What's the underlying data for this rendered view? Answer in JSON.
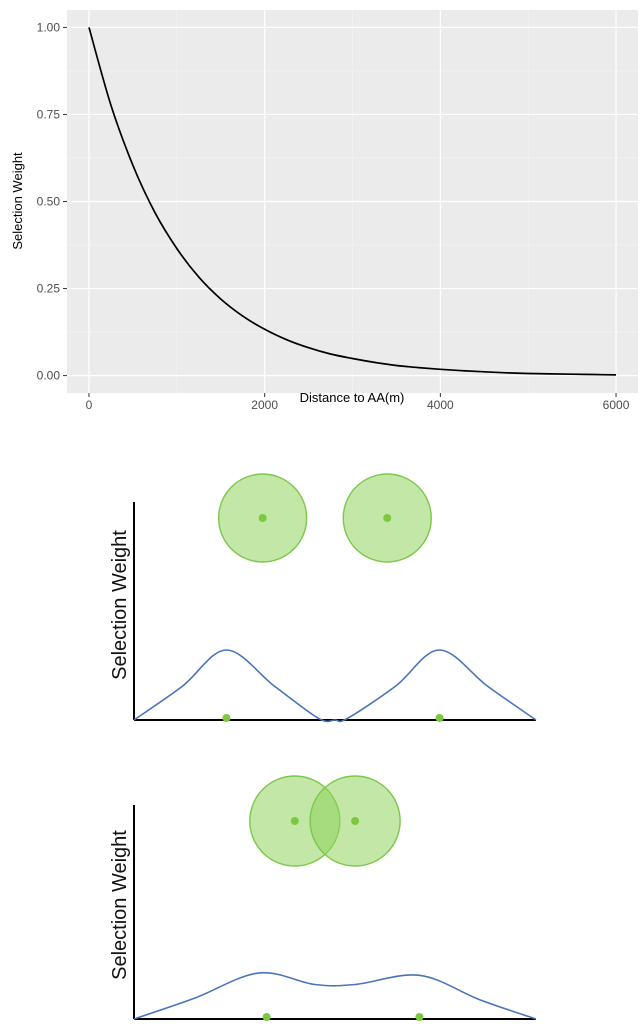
{
  "chart_data": [
    {
      "type": "line",
      "xlabel": "Distance to AA(m)",
      "ylabel": "Selection Weight",
      "xlim": [
        -250,
        6250
      ],
      "ylim": [
        -0.05,
        1.05
      ],
      "x_ticks": [
        0,
        2000,
        4000,
        6000
      ],
      "x_tick_labels": [
        "0",
        "2000",
        "4000",
        "6000"
      ],
      "y_ticks": [
        0,
        0.25,
        0.5,
        0.75,
        1.0
      ],
      "y_tick_labels": [
        "0.00",
        "0.25",
        "0.50",
        "0.75",
        "1.00"
      ],
      "grid": true,
      "series": [
        {
          "color": "#000000",
          "x": [
            0,
            250,
            500,
            750,
            1000,
            1250,
            1500,
            1750,
            2000,
            2250,
            2500,
            2750,
            3000,
            3250,
            3500,
            3750,
            4000,
            4250,
            4500,
            4750,
            5000,
            5250,
            5500,
            5750,
            6000
          ],
          "y": [
            1.0,
            0.777,
            0.604,
            0.469,
            0.365,
            0.283,
            0.22,
            0.171,
            0.133,
            0.103,
            0.08,
            0.062,
            0.049,
            0.038,
            0.029,
            0.023,
            0.018,
            0.014,
            0.011,
            0.008,
            0.006,
            0.005,
            0.004,
            0.003,
            0.002
          ]
        }
      ]
    },
    {
      "type": "line",
      "ylabel": "Selection Weight",
      "series": [
        {
          "color": "#4a74b8",
          "x": [
            0,
            0.12,
            0.23,
            0.35,
            0.46,
            0.5,
            0.53,
            0.65,
            0.76,
            0.88,
            1.0
          ],
          "y": [
            0,
            0.48,
            1.0,
            0.48,
            0.02,
            0,
            0.02,
            0.48,
            1.0,
            0.48,
            0
          ]
        }
      ],
      "points": [
        {
          "x": 0.23,
          "y": 0
        },
        {
          "x": 0.76,
          "y": 0
        }
      ],
      "circles": [
        {
          "x": 0.32
        },
        {
          "x": 0.63
        }
      ],
      "colors": {
        "circle_fill": "#8fd45c",
        "circle_stroke": "#7cc84a",
        "dot": "#7cc93f",
        "curve": "#4a74b8"
      }
    },
    {
      "type": "line",
      "ylabel": "Selection Weight",
      "series": [
        {
          "color": "#4a74b8",
          "x": [
            0,
            0.15,
            0.31,
            0.45,
            0.55,
            0.71,
            0.86,
            1.0
          ],
          "y": [
            0,
            0.45,
            1.0,
            0.75,
            0.75,
            0.95,
            0.42,
            0
          ]
        }
      ],
      "points": [
        {
          "x": 0.33,
          "y": 0
        },
        {
          "x": 0.71,
          "y": 0
        }
      ],
      "circles": [
        {
          "x": 0.4
        },
        {
          "x": 0.55
        }
      ],
      "colors": {
        "circle_fill": "#8fd45c",
        "circle_stroke": "#7cc84a",
        "dot": "#7cc93f",
        "curve": "#4a74b8"
      }
    }
  ]
}
